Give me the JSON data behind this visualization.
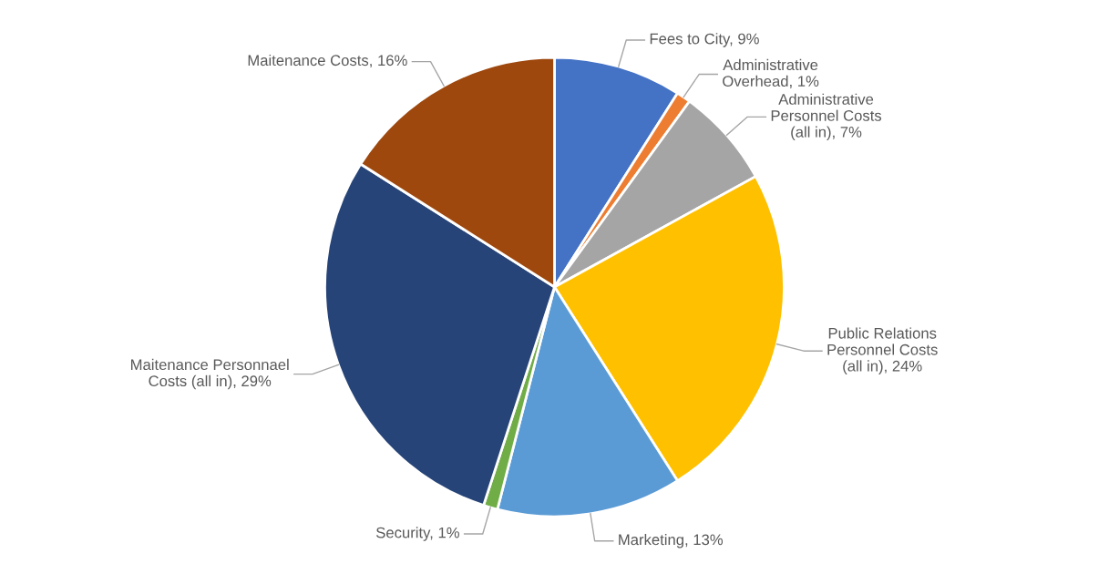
{
  "chart_data": {
    "type": "pie",
    "categories": [
      "Fees to City",
      "Administrative Overhead",
      "Administrative Personnel Costs (all in)",
      "Public Relations Personnel Costs (all in)",
      "Marketing",
      "Security",
      "Maitenance Personnael Costs (all in)",
      "Maitenance Costs"
    ],
    "values": [
      9,
      1,
      7,
      24,
      13,
      1,
      29,
      16
    ],
    "colors": [
      "#4472c4",
      "#ed7d31",
      "#a5a5a5",
      "#ffc000",
      "#5b9bd5",
      "#70ad47",
      "#264478",
      "#9e480e"
    ],
    "value_labels": [
      "9%",
      "1%",
      "7%",
      "24%",
      "13%",
      "1%",
      "29%",
      "16%"
    ],
    "legend": false
  }
}
